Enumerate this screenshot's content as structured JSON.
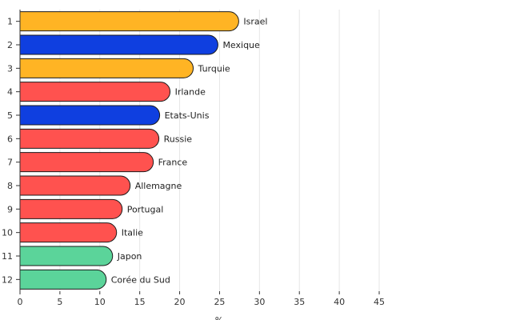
{
  "chart_data": {
    "type": "bar",
    "orientation": "horizontal",
    "title": "",
    "xlabel": "%",
    "ylabel": "",
    "xlim": [
      0,
      45
    ],
    "xticks": [
      0,
      5,
      10,
      15,
      20,
      25,
      30,
      35,
      40,
      45
    ],
    "grid": true,
    "ranks": [
      "1",
      "2",
      "3",
      "4",
      "5",
      "6",
      "7",
      "8",
      "9",
      "10",
      "11",
      "12"
    ],
    "categories": [
      "Israel",
      "Mexique",
      "Turquie",
      "Irlande",
      "Etats-Unis",
      "Russie",
      "France",
      "Allemagne",
      "Portugal",
      "Italie",
      "Japon",
      "Corée du Sud"
    ],
    "values": [
      27.4,
      24.8,
      21.7,
      18.8,
      17.5,
      17.4,
      16.7,
      13.8,
      12.8,
      12.1,
      11.6,
      10.8
    ],
    "groups": [
      "orange",
      "blue",
      "orange",
      "red",
      "blue",
      "red",
      "red",
      "red",
      "red",
      "red",
      "green",
      "green"
    ],
    "colors": {
      "orange": "#ffb424",
      "blue": "#0f3fe0",
      "red": "#ff524f",
      "green": "#5bd49a"
    }
  }
}
